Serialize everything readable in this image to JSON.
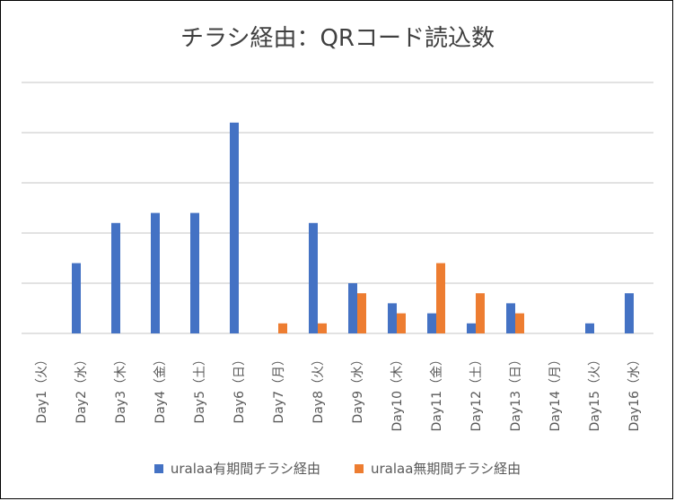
{
  "chart_data": {
    "type": "bar",
    "title": "チラシ経由：QRコード読込数",
    "categories": [
      "Day1（火）",
      "Day2（水）",
      "Day3（木）",
      "Day4（金）",
      "Day5（土）",
      "Day6（日）",
      "Day7（月）",
      "Day8（火）",
      "Day9（水）",
      "Day10（木）",
      "Day11（金）",
      "Day12（土）",
      "Day13（日）",
      "Day14（月）",
      "Day15（火）",
      "Day16（水）"
    ],
    "series": [
      {
        "name": "uralaa有期間チラシ経由",
        "color": "#4472c4",
        "values": [
          0,
          7,
          11,
          12,
          12,
          21,
          0,
          11,
          5,
          3,
          2,
          1,
          3,
          0,
          1,
          4
        ]
      },
      {
        "name": "uralaa無期間チラシ経由",
        "color": "#ed7d31",
        "values": [
          0,
          0,
          0,
          0,
          0,
          0,
          1,
          1,
          4,
          2,
          7,
          4,
          2,
          0,
          0,
          0
        ]
      }
    ],
    "ylim": [
      0,
      25
    ],
    "ytick_step": 5,
    "grid": true,
    "legend": "bottom"
  }
}
